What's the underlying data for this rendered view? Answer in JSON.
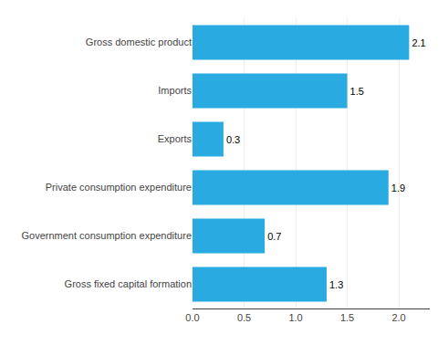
{
  "chart_data": {
    "type": "bar",
    "orientation": "horizontal",
    "categories": [
      "Gross fixed capital formation",
      "Government consumption expenditure",
      "Private consumption expenditure",
      "Exports",
      "Imports",
      "Gross domestic product"
    ],
    "values": [
      1.3,
      0.7,
      1.9,
      0.3,
      1.5,
      2.1
    ],
    "color": "#29abe2",
    "xlim": [
      0,
      2.3
    ],
    "xticks": [
      {
        "value": 0,
        "label": "0.0"
      },
      0.5,
      {
        "value": 1,
        "label": "1.0"
      },
      1.5,
      {
        "value": 2,
        "label": "2.0"
      }
    ],
    "grid": true,
    "data_labels": true
  }
}
